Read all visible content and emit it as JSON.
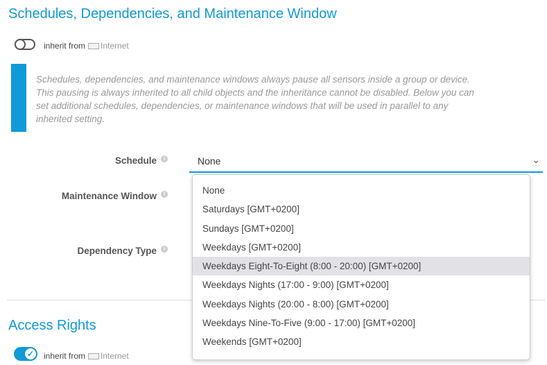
{
  "schedules": {
    "title": "Schedules, Dependencies, and Maintenance Window",
    "inherit_label": "inherit from",
    "inherit_source": "Internet",
    "inherit_on": false,
    "note": "Schedules, dependencies, and maintenance windows always pause all sensors inside a group or device. This pausing is always inherited to all child objects and the inheritance cannot be disabled. Below you can set additional schedules, dependencies, or maintenance windows that will be used in parallel to any inherited setting.",
    "schedule_label": "Schedule",
    "schedule_value": "None",
    "maintenance_label": "Maintenance Window",
    "dependency_label": "Dependency Type",
    "options": [
      "None",
      "Saturdays [GMT+0200]",
      "Sundays [GMT+0200]",
      "Weekdays [GMT+0200]",
      "Weekdays Eight-To-Eight (8:00 - 20:00) [GMT+0200]",
      "Weekdays Nights (17:00 - 9:00) [GMT+0200]",
      "Weekdays Nights (20:00 - 8:00) [GMT+0200]",
      "Weekdays Nine-To-Five (9:00 - 17:00) [GMT+0200]",
      "Weekends [GMT+0200]"
    ],
    "highlighted_option": "Weekdays Eight-To-Eight (8:00 - 20:00) [GMT+0200]"
  },
  "access": {
    "title": "Access Rights",
    "inherit_label": "inherit from",
    "inherit_source": "Internet",
    "inherit_on": true
  },
  "colors": {
    "accent": "#0f9ad8"
  }
}
